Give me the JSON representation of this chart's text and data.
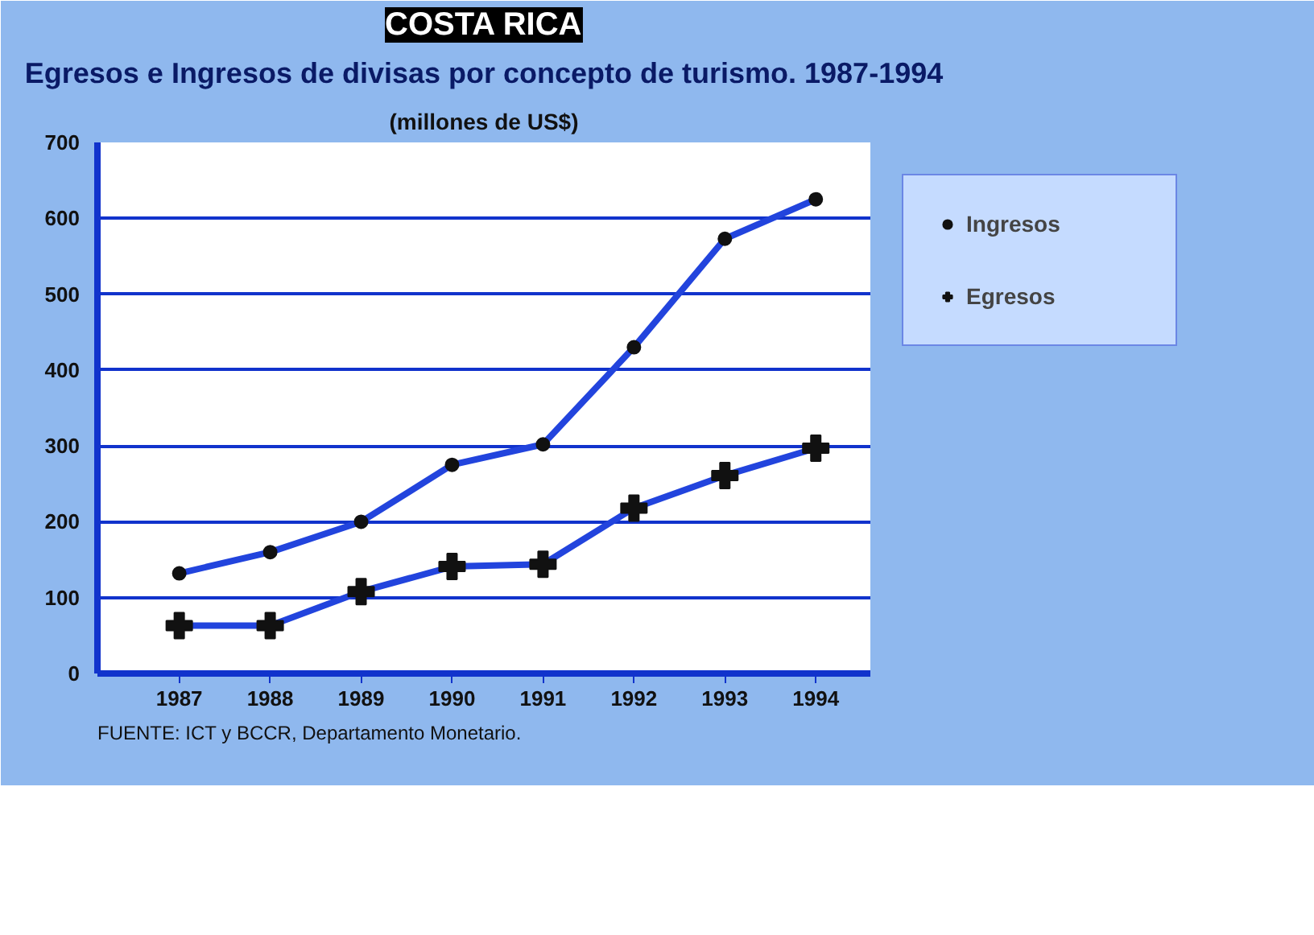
{
  "chart_data": {
    "type": "line",
    "title": "COSTA RICA",
    "subtitle": "Egresos e Ingresos de divisas por concepto de turismo. 1987-1994",
    "annotations": [
      "(millones de US$)",
      "FUENTE: ICT y BCCR, Departamento Monetario."
    ],
    "categories": [
      "1987",
      "1988",
      "1989",
      "1990",
      "1991",
      "1992",
      "1993",
      "1994"
    ],
    "series": [
      {
        "name": "Ingresos",
        "color": "#2244dd",
        "marker": "circle",
        "values": [
          132,
          160,
          200,
          275,
          302,
          430,
          573,
          625
        ]
      },
      {
        "name": "Egresos",
        "color": "#2244dd",
        "marker": "cross",
        "values": [
          63,
          63,
          108,
          141,
          144,
          218,
          261,
          297
        ]
      }
    ],
    "ylim": [
      0,
      700
    ],
    "yticks": [
      0,
      100,
      200,
      300,
      400,
      500,
      600,
      700
    ],
    "grid": "y",
    "legend": "right",
    "line_style": "solid"
  }
}
